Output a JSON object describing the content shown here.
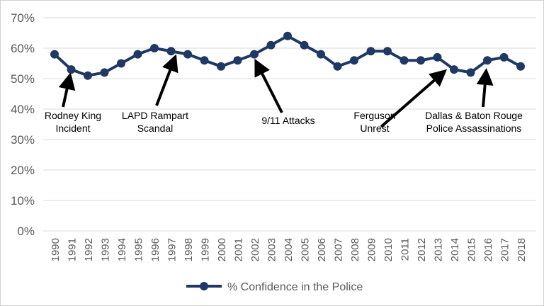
{
  "chart_data": {
    "type": "line",
    "title": "",
    "xlabel": "",
    "ylabel": "",
    "ylim": [
      0,
      70
    ],
    "yticks": [
      "0%",
      "10%",
      "20%",
      "30%",
      "40%",
      "50%",
      "60%",
      "70%"
    ],
    "grid": true,
    "legend_position": "bottom",
    "categories": [
      "1990",
      "1991",
      "1992",
      "1993",
      "1994",
      "1995",
      "1996",
      "1997",
      "1998",
      "1999",
      "2000",
      "2001",
      "2002",
      "2003",
      "2004",
      "2005",
      "2006",
      "2007",
      "2008",
      "2009",
      "2010",
      "2011",
      "2012",
      "2013",
      "2014",
      "2015",
      "2016",
      "2017",
      "2018"
    ],
    "series": [
      {
        "name": "% Confidence in the Police",
        "color": "#1f3864",
        "values": [
          58,
          53,
          51,
          52,
          55,
          58,
          60,
          59,
          58,
          56,
          54,
          56,
          58,
          61,
          64,
          61,
          58,
          54,
          56,
          59,
          59,
          56,
          56,
          57,
          53,
          52,
          56,
          57,
          54
        ]
      }
    ],
    "annotations": [
      {
        "lines": [
          "Rodney King",
          "Incident"
        ],
        "year": "1991"
      },
      {
        "lines": [
          "LAPD Rampart",
          "Scandal"
        ],
        "year": "1997"
      },
      {
        "lines": [
          "9/11 Attacks"
        ],
        "year": "2002"
      },
      {
        "lines": [
          "Ferguson",
          "Unrest"
        ],
        "year": "2014"
      },
      {
        "lines": [
          "Dallas & Baton Rouge",
          "Police Assassinations"
        ],
        "year": "2016"
      }
    ]
  }
}
